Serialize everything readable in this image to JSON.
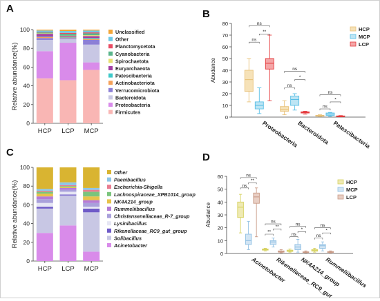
{
  "panels": {
    "A": {
      "letter": "A"
    },
    "B": {
      "letter": "B"
    },
    "C": {
      "letter": "C"
    },
    "D": {
      "letter": "D"
    }
  },
  "chart_data": [
    {
      "id": "A",
      "type": "bar",
      "stacked": true,
      "ylabel": "Relative abundance(%)",
      "ylim": [
        0,
        100
      ],
      "yticks": [
        0,
        20,
        40,
        60,
        80,
        100
      ],
      "categories": [
        "HCP",
        "LCP",
        "MCP"
      ],
      "legend_position": "right",
      "series": [
        {
          "name": "Firmicutes",
          "color": "#F9B6B4",
          "values": [
            48,
            46,
            57
          ]
        },
        {
          "name": "Proteobacteria",
          "color": "#D98BEA",
          "values": [
            29,
            40,
            8
          ]
        },
        {
          "name": "Bacteroidota",
          "color": "#C8C7E4",
          "values": [
            12,
            4,
            19
          ]
        },
        {
          "name": "Verrucomicrobiota",
          "color": "#8C7FD6",
          "values": [
            2,
            1,
            5
          ]
        },
        {
          "name": "Actinobacteriota",
          "color": "#F5A15A",
          "values": [
            1,
            0.5,
            1
          ]
        },
        {
          "name": "Patescibacteria",
          "color": "#3EC9C9",
          "values": [
            0.5,
            0.5,
            1
          ]
        },
        {
          "name": "Euryarchaeota",
          "color": "#A43FA4",
          "values": [
            3,
            1,
            2
          ]
        },
        {
          "name": "Spirochaetota",
          "color": "#E8E070",
          "values": [
            0.5,
            0.5,
            1
          ]
        },
        {
          "name": "Cyanobacteria",
          "color": "#5AB58C",
          "values": [
            1,
            2,
            2
          ]
        },
        {
          "name": "Planctomycetota",
          "color": "#E94C64",
          "values": [
            0.5,
            1,
            1
          ]
        },
        {
          "name": "Other",
          "color": "#6BC9E6",
          "values": [
            1.5,
            2,
            2
          ]
        },
        {
          "name": "Unclassified",
          "color": "#F2A638",
          "values": [
            1,
            1.5,
            1
          ]
        }
      ]
    },
    {
      "id": "B",
      "type": "box",
      "ylabel": "Abudance",
      "ylim": [
        0,
        80
      ],
      "yticks": [
        0,
        10,
        20,
        30,
        40,
        50,
        60,
        70,
        80
      ],
      "categories": [
        "Proteobacteria",
        "Bacteroidota",
        "Patescibacteria"
      ],
      "legend_position": "top-right",
      "series": [
        {
          "name": "HCP",
          "color": "#E9C27A",
          "fill": "#F6E2B8",
          "boxes": [
            [
              13,
              22,
              32,
              40,
              50
            ],
            [
              2,
              5,
              6.5,
              9,
              14
            ],
            [
              0.5,
              0.8,
              1.2,
              1.5,
              2
            ]
          ]
        },
        {
          "name": "MCP",
          "color": "#59BFE6",
          "fill": "#BDE5F4",
          "boxes": [
            [
              3,
              7,
              10,
              13,
              25
            ],
            [
              6,
              10,
              15,
              18,
              20
            ],
            [
              0.5,
              1.5,
              2.5,
              3.5,
              4
            ]
          ]
        },
        {
          "name": "LCP",
          "color": "#E5383B",
          "fill": "#F4A6A7",
          "boxes": [
            [
              14,
              41,
              46,
              50,
              70
            ],
            [
              2.5,
              3.5,
              4,
              4.5,
              5
            ],
            [
              0.2,
              0.5,
              0.8,
              1,
              1.3
            ]
          ]
        }
      ],
      "significance": [
        {
          "group": 0,
          "from": 0,
          "to": 1,
          "label": "ns",
          "y": 64
        },
        {
          "group": 0,
          "from": 1,
          "to": 2,
          "label": "**",
          "y": 71
        },
        {
          "group": 0,
          "from": 0,
          "to": 2,
          "label": "ns",
          "y": 78
        },
        {
          "group": 1,
          "from": 0,
          "to": 1,
          "label": "ns",
          "y": 25
        },
        {
          "group": 1,
          "from": 1,
          "to": 2,
          "label": "*",
          "y": 32
        },
        {
          "group": 1,
          "from": 0,
          "to": 2,
          "label": "ns",
          "y": 39
        },
        {
          "group": 2,
          "from": 0,
          "to": 1,
          "label": "ns",
          "y": 7
        },
        {
          "group": 2,
          "from": 1,
          "to": 2,
          "label": "*",
          "y": 13
        },
        {
          "group": 2,
          "from": 0,
          "to": 2,
          "label": "ns",
          "y": 19
        }
      ]
    },
    {
      "id": "C",
      "type": "bar",
      "stacked": true,
      "ylabel": "Relative abundance(%)",
      "ylim": [
        0,
        100
      ],
      "yticks": [
        0,
        20,
        40,
        60,
        80,
        100
      ],
      "categories": [
        "HCP",
        "LCP",
        "MCP"
      ],
      "legend_position": "right",
      "series": [
        {
          "name": "Acinetobacter",
          "color": "#D98BEA",
          "values": [
            30,
            38,
            10
          ]
        },
        {
          "name": "Solibacillus",
          "color": "#C8C7E4",
          "values": [
            26,
            32,
            42
          ]
        },
        {
          "name": "Rikenellaceae_RC9_gut_group",
          "color": "#6F5BC8",
          "values": [
            2,
            1,
            4
          ]
        },
        {
          "name": "Lysinibacillus",
          "color": "#E6E6F4",
          "values": [
            4,
            3,
            2
          ]
        },
        {
          "name": "Christensenellaceae_R-7_group",
          "color": "#A9A0DB",
          "values": [
            4,
            2,
            4
          ]
        },
        {
          "name": "Rummeliibacillus",
          "color": "#B57BD6",
          "values": [
            3,
            2,
            3
          ]
        },
        {
          "name": "NK4A214_group",
          "color": "#E8C24A",
          "values": [
            3,
            1,
            4
          ]
        },
        {
          "name": "Lachnospiraceae_XPB1014_group",
          "color": "#7AC47C",
          "values": [
            2,
            1,
            5
          ]
        },
        {
          "name": "Escherichia-Shigella",
          "color": "#E97C90",
          "values": [
            1,
            1,
            2
          ]
        },
        {
          "name": "Paenibacillus",
          "color": "#8DC6E8",
          "values": [
            2,
            3,
            2
          ]
        },
        {
          "name": "Other",
          "color": "#D9B431",
          "values": [
            23,
            16,
            22
          ]
        }
      ]
    },
    {
      "id": "D",
      "type": "box",
      "ylabel": "Abudance",
      "ylim": [
        0,
        60
      ],
      "yticks": [
        0,
        10,
        20,
        30,
        40,
        50,
        60
      ],
      "categories": [
        "Acinetobacter",
        "Rikenellaceae_RC9_gut_group",
        "NK4A214_group",
        "Rummeliibacillus"
      ],
      "legend_position": "top-right",
      "series": [
        {
          "name": "HCP",
          "color": "#D6D15E",
          "fill": "#EFEAB3",
          "boxes": [
            [
              16,
              28,
              36,
              40,
              46
            ],
            [
              2,
              2.6,
              3,
              3.5,
              4
            ],
            [
              1,
              1.6,
              2,
              2.6,
              3.5
            ],
            [
              1,
              1.8,
              2.5,
              3,
              4
            ]
          ]
        },
        {
          "name": "MCP",
          "color": "#8FBFE3",
          "fill": "#D2E5F4",
          "boxes": [
            [
              3,
              7,
              10,
              15,
              25
            ],
            [
              5,
              7,
              9,
              10,
              12
            ],
            [
              1,
              3,
              5,
              7,
              11
            ],
            [
              2,
              4,
              6,
              7,
              9
            ]
          ]
        },
        {
          "name": "LCP",
          "color": "#C99A86",
          "fill": "#E9CFC4",
          "boxes": [
            [
              13,
              39,
              44,
              47,
              51
            ],
            [
              0.5,
              1,
              1.5,
              2,
              3
            ],
            [
              0.5,
              0.8,
              1,
              1.3,
              2
            ],
            [
              0.3,
              0.8,
              1,
              1.5,
              2
            ]
          ]
        }
      ],
      "significance": [
        {
          "group": 0,
          "from": 0,
          "to": 1,
          "label": "ns",
          "y": 51
        },
        {
          "group": 0,
          "from": 1,
          "to": 2,
          "label": "**",
          "y": 55
        },
        {
          "group": 0,
          "from": 0,
          "to": 2,
          "label": "ns",
          "y": 59
        },
        {
          "group": 1,
          "from": 0,
          "to": 1,
          "label": "**",
          "y": 15
        },
        {
          "group": 1,
          "from": 1,
          "to": 2,
          "label": "**",
          "y": 19
        },
        {
          "group": 1,
          "from": 0,
          "to": 2,
          "label": "ns",
          "y": 23
        },
        {
          "group": 2,
          "from": 0,
          "to": 1,
          "label": "ns",
          "y": 13
        },
        {
          "group": 2,
          "from": 1,
          "to": 2,
          "label": "*",
          "y": 17
        },
        {
          "group": 2,
          "from": 0,
          "to": 2,
          "label": "ns",
          "y": 21
        },
        {
          "group": 3,
          "from": 0,
          "to": 1,
          "label": "ns",
          "y": 12
        },
        {
          "group": 3,
          "from": 1,
          "to": 2,
          "label": "*",
          "y": 16
        },
        {
          "group": 3,
          "from": 0,
          "to": 2,
          "label": "ns",
          "y": 20
        }
      ]
    }
  ]
}
